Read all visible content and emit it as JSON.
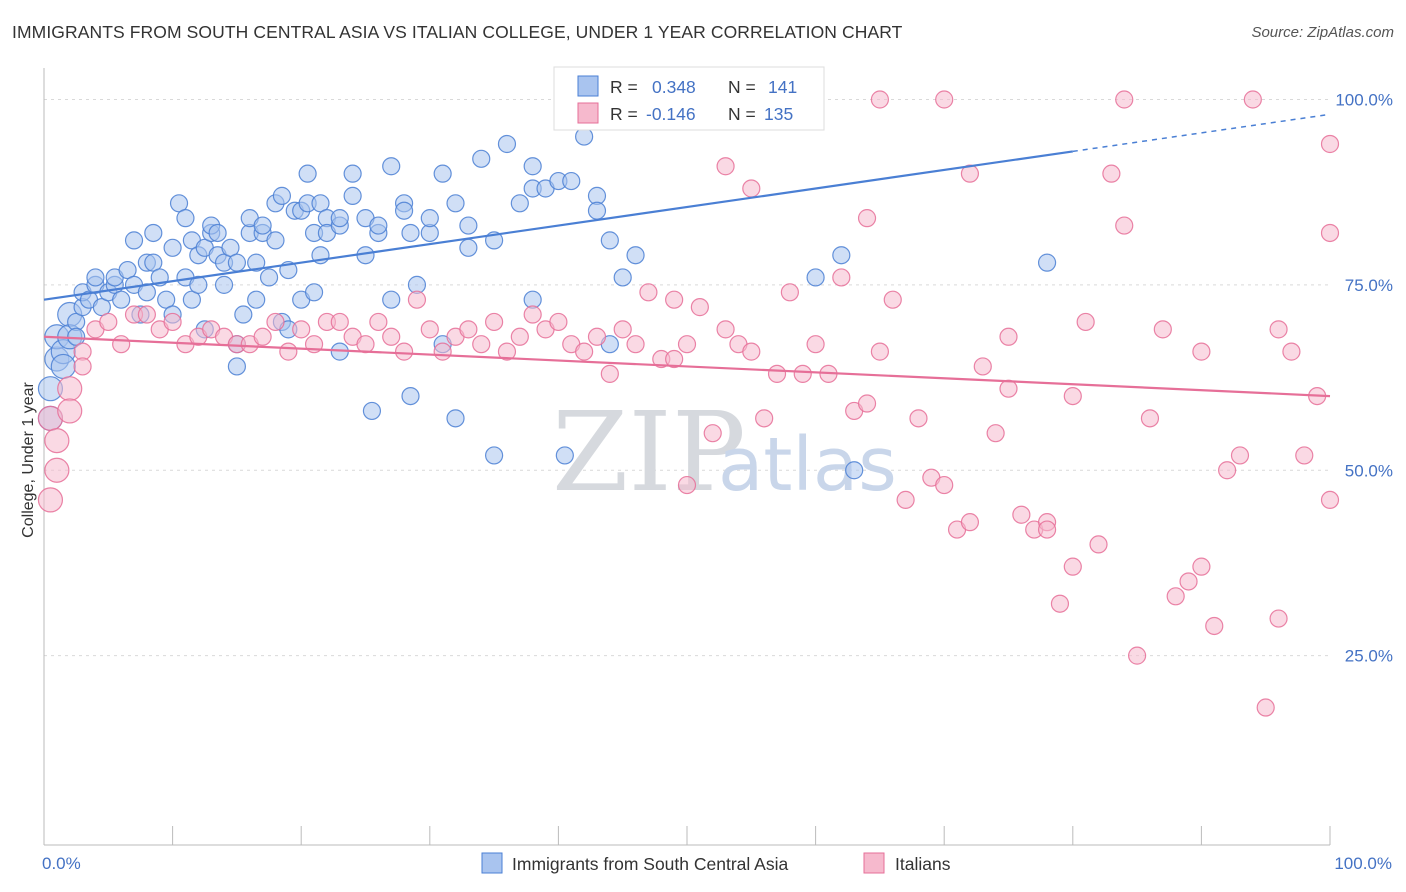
{
  "title": "IMMIGRANTS FROM SOUTH CENTRAL ASIA VS ITALIAN COLLEGE, UNDER 1 YEAR CORRELATION CHART",
  "source": "Source: ZipAtlas.com",
  "watermark": {
    "zip": "ZIP",
    "atlas": "atlas"
  },
  "colors": {
    "blue": "#4a7fd4",
    "blue_fill": "#a9c4ef",
    "pink": "#e66f98",
    "pink_fill": "#f6b9cd",
    "axis_text": "#4472c4"
  },
  "chart_data": {
    "type": "scatter",
    "xlabel": "",
    "ylabel": "College, Under 1 year",
    "xlim": [
      0,
      100
    ],
    "ylim": [
      0,
      100
    ],
    "x_tick_labels": [
      "0.0%",
      "100.0%"
    ],
    "y_ticks": [
      {
        "value": 25,
        "label": "25.0%"
      },
      {
        "value": 50,
        "label": "50.0%"
      },
      {
        "value": 75,
        "label": "75.0%"
      },
      {
        "value": 100,
        "label": "100.0%"
      }
    ],
    "grid": "horizontal dashed",
    "legend_position": "top-center",
    "series": [
      {
        "name": "Immigrants from South Central Asia",
        "R_label": "R =",
        "R": "0.348",
        "N_label": "N =",
        "N": "141",
        "trend": {
          "x": [
            0,
            80
          ],
          "y": [
            73,
            93
          ],
          "dash_to": [
            100,
            98
          ]
        },
        "points": [
          [
            0.5,
            61
          ],
          [
            0.5,
            57
          ],
          [
            1,
            65
          ],
          [
            1,
            68
          ],
          [
            1.5,
            66
          ],
          [
            1.5,
            64
          ],
          [
            2,
            71
          ],
          [
            2,
            68
          ],
          [
            2.5,
            70
          ],
          [
            2.5,
            68
          ],
          [
            3,
            72
          ],
          [
            3,
            74
          ],
          [
            3.5,
            73
          ],
          [
            4,
            75
          ],
          [
            4,
            76
          ],
          [
            4.5,
            72
          ],
          [
            5,
            74
          ],
          [
            5.5,
            75
          ],
          [
            5.5,
            76
          ],
          [
            6,
            73
          ],
          [
            6.5,
            77
          ],
          [
            7,
            81
          ],
          [
            7,
            75
          ],
          [
            7.5,
            71
          ],
          [
            8,
            74
          ],
          [
            8,
            78
          ],
          [
            8.5,
            82
          ],
          [
            8.5,
            78
          ],
          [
            9,
            76
          ],
          [
            9.5,
            73
          ],
          [
            10,
            80
          ],
          [
            10,
            71
          ],
          [
            10.5,
            86
          ],
          [
            11,
            76
          ],
          [
            11,
            84
          ],
          [
            11.5,
            81
          ],
          [
            11.5,
            73
          ],
          [
            12,
            75
          ],
          [
            12,
            79
          ],
          [
            12.5,
            80
          ],
          [
            12.5,
            69
          ],
          [
            13,
            82
          ],
          [
            13,
            83
          ],
          [
            13.5,
            79
          ],
          [
            13.5,
            82
          ],
          [
            14,
            78
          ],
          [
            14,
            75
          ],
          [
            14.5,
            80
          ],
          [
            15,
            78
          ],
          [
            15,
            67
          ],
          [
            15,
            64
          ],
          [
            15.5,
            71
          ],
          [
            16,
            82
          ],
          [
            16,
            84
          ],
          [
            16.5,
            78
          ],
          [
            16.5,
            73
          ],
          [
            17,
            82
          ],
          [
            17,
            83
          ],
          [
            17.5,
            76
          ],
          [
            18,
            81
          ],
          [
            18,
            86
          ],
          [
            18.5,
            87
          ],
          [
            18.5,
            70
          ],
          [
            19,
            77
          ],
          [
            19,
            69
          ],
          [
            19.5,
            85
          ],
          [
            20,
            85
          ],
          [
            20,
            73
          ],
          [
            20.5,
            86
          ],
          [
            20.5,
            90
          ],
          [
            21,
            82
          ],
          [
            21,
            74
          ],
          [
            21.5,
            79
          ],
          [
            21.5,
            86
          ],
          [
            22,
            84
          ],
          [
            22,
            82
          ],
          [
            23,
            83
          ],
          [
            23,
            84
          ],
          [
            23,
            66
          ],
          [
            24,
            90
          ],
          [
            24,
            87
          ],
          [
            25,
            84
          ],
          [
            25,
            79
          ],
          [
            25.5,
            58
          ],
          [
            26,
            82
          ],
          [
            26,
            83
          ],
          [
            27,
            91
          ],
          [
            27,
            73
          ],
          [
            28,
            86
          ],
          [
            28,
            85
          ],
          [
            28.5,
            82
          ],
          [
            28.5,
            60
          ],
          [
            29,
            75
          ],
          [
            30,
            82
          ],
          [
            30,
            84
          ],
          [
            31,
            90
          ],
          [
            31,
            67
          ],
          [
            32,
            86
          ],
          [
            32,
            57
          ],
          [
            33,
            83
          ],
          [
            33,
            80
          ],
          [
            34,
            92
          ],
          [
            35,
            81
          ],
          [
            35,
            52
          ],
          [
            36,
            94
          ],
          [
            37,
            86
          ],
          [
            38,
            73
          ],
          [
            38,
            91
          ],
          [
            38,
            88
          ],
          [
            39,
            88
          ],
          [
            40,
            89
          ],
          [
            40.5,
            52
          ],
          [
            41,
            89
          ],
          [
            42,
            95
          ],
          [
            43,
            87
          ],
          [
            43,
            85
          ],
          [
            44,
            81
          ],
          [
            44,
            67
          ],
          [
            45,
            76
          ],
          [
            46,
            79
          ],
          [
            60,
            76
          ],
          [
            62,
            79
          ],
          [
            63,
            50
          ],
          [
            78,
            78
          ]
        ]
      },
      {
        "name": "Italians",
        "R_label": "R =",
        "R": "-0.146",
        "N_label": "N =",
        "N": "135",
        "trend": {
          "x": [
            0,
            100
          ],
          "y": [
            68,
            60
          ]
        },
        "points": [
          [
            0.5,
            57
          ],
          [
            0.5,
            46
          ],
          [
            1,
            54
          ],
          [
            1,
            50
          ],
          [
            2,
            61
          ],
          [
            2,
            58
          ],
          [
            3,
            66
          ],
          [
            3,
            64
          ],
          [
            4,
            69
          ],
          [
            5,
            70
          ],
          [
            6,
            67
          ],
          [
            7,
            71
          ],
          [
            8,
            71
          ],
          [
            9,
            69
          ],
          [
            10,
            70
          ],
          [
            11,
            67
          ],
          [
            12,
            68
          ],
          [
            13,
            69
          ],
          [
            14,
            68
          ],
          [
            15,
            67
          ],
          [
            16,
            67
          ],
          [
            17,
            68
          ],
          [
            18,
            70
          ],
          [
            19,
            66
          ],
          [
            20,
            69
          ],
          [
            21,
            67
          ],
          [
            22,
            70
          ],
          [
            23,
            70
          ],
          [
            24,
            68
          ],
          [
            25,
            67
          ],
          [
            26,
            70
          ],
          [
            27,
            68
          ],
          [
            28,
            66
          ],
          [
            29,
            73
          ],
          [
            30,
            69
          ],
          [
            31,
            66
          ],
          [
            32,
            68
          ],
          [
            33,
            69
          ],
          [
            34,
            67
          ],
          [
            35,
            70
          ],
          [
            36,
            66
          ],
          [
            37,
            68
          ],
          [
            38,
            71
          ],
          [
            39,
            69
          ],
          [
            40,
            70
          ],
          [
            41,
            67
          ],
          [
            42,
            66
          ],
          [
            43,
            68
          ],
          [
            44,
            63
          ],
          [
            45,
            69
          ],
          [
            46,
            67
          ],
          [
            47,
            74
          ],
          [
            48,
            65
          ],
          [
            49,
            73
          ],
          [
            50,
            67
          ],
          [
            51,
            72
          ],
          [
            52,
            55
          ],
          [
            53,
            69
          ],
          [
            54,
            67
          ],
          [
            55,
            66
          ],
          [
            56,
            57
          ],
          [
            57,
            63
          ],
          [
            58,
            74
          ],
          [
            59,
            63
          ],
          [
            60,
            67
          ],
          [
            61,
            63
          ],
          [
            62,
            76
          ],
          [
            63,
            58
          ],
          [
            64,
            59
          ],
          [
            65,
            66
          ],
          [
            66,
            73
          ],
          [
            67,
            46
          ],
          [
            68,
            57
          ],
          [
            69,
            49
          ],
          [
            70,
            48
          ],
          [
            71,
            42
          ],
          [
            72,
            43
          ],
          [
            73,
            64
          ],
          [
            74,
            55
          ],
          [
            75,
            68
          ],
          [
            76,
            44
          ],
          [
            77,
            42
          ],
          [
            78,
            43
          ],
          [
            79,
            32
          ],
          [
            80,
            60
          ],
          [
            81,
            70
          ],
          [
            82,
            40
          ],
          [
            83,
            90
          ],
          [
            84,
            83
          ],
          [
            85,
            25
          ],
          [
            86,
            57
          ],
          [
            87,
            69
          ],
          [
            88,
            33
          ],
          [
            89,
            35
          ],
          [
            90,
            66
          ],
          [
            91,
            29
          ],
          [
            92,
            50
          ],
          [
            93,
            52
          ],
          [
            94,
            100
          ],
          [
            95,
            18
          ],
          [
            96,
            69
          ],
          [
            97,
            66
          ],
          [
            98,
            52
          ],
          [
            99,
            60
          ],
          [
            100,
            82
          ],
          [
            100,
            46
          ],
          [
            100,
            94
          ],
          [
            49,
            65
          ],
          [
            50,
            48
          ],
          [
            53,
            91
          ],
          [
            55,
            88
          ],
          [
            65,
            100
          ],
          [
            70,
            100
          ],
          [
            72,
            90
          ],
          [
            75,
            61
          ],
          [
            78,
            42
          ],
          [
            80,
            37
          ],
          [
            84,
            100
          ],
          [
            90,
            37
          ],
          [
            96,
            30
          ],
          [
            64,
            84
          ]
        ]
      }
    ]
  }
}
